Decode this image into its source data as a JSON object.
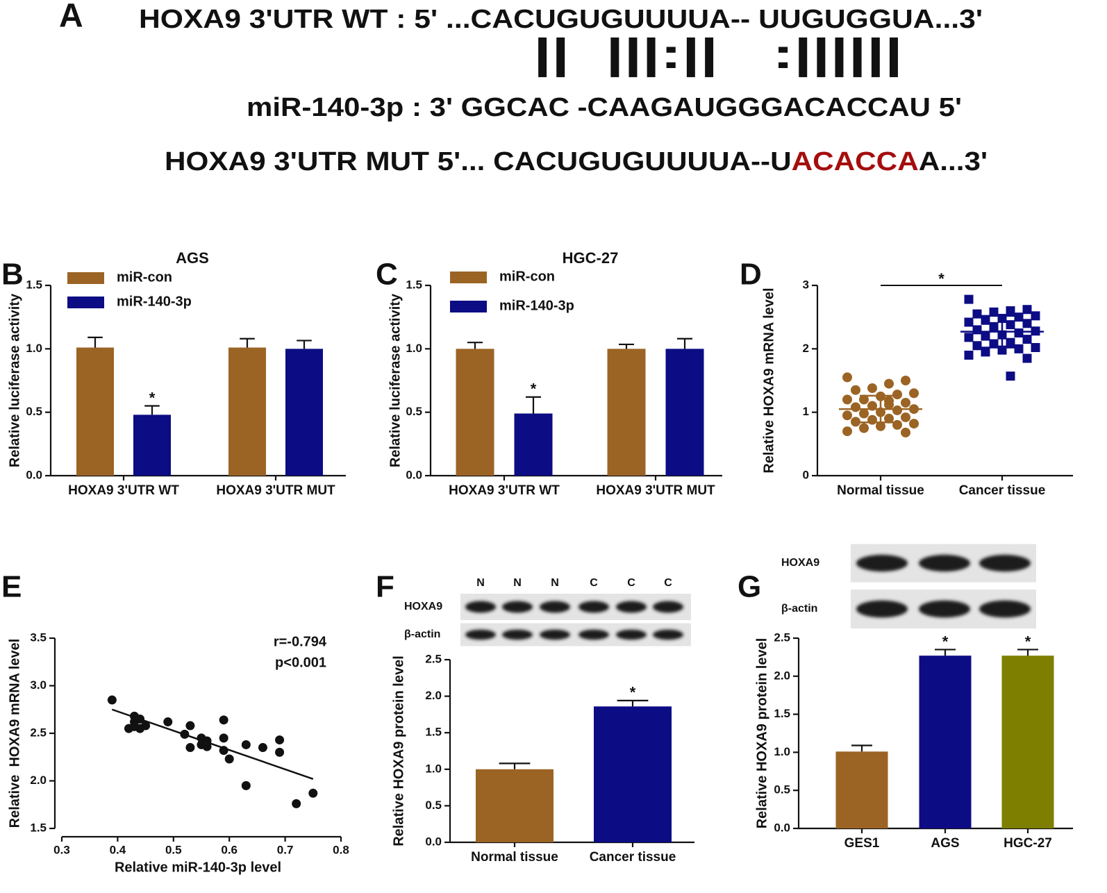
{
  "panel_a": {
    "label": "A",
    "rows": [
      [
        {
          "text": "HOXA9 3'UTR WT : 5' ...CACUGUGUUUUA-- UUGUGGUA...3'"
        }
      ],
      [
        {
          "text": "||  |||:||   :||||||"
        }
      ],
      [
        {
          "text": "miR-140-3p : 3' GGCAC -CAAGAUGGGACACCAU 5'"
        }
      ],
      [
        {
          "text": "HOXA9 3'UTR MUT 5'... CACUGUGUUUUA--U"
        },
        {
          "text": "ACACCA",
          "color": "#a50d0d"
        },
        {
          "text": "A...3'"
        }
      ]
    ]
  },
  "chart_data": [
    {
      "type": "bar",
      "label": "B",
      "title": "AGS",
      "ylabel": "Relative luciferase activity",
      "categories": [
        "HOXA9 3'UTR WT",
        "HOXA9 3'UTR MUT"
      ],
      "series": [
        {
          "name": "miR-con",
          "color": "#9b6424",
          "values": [
            1.01,
            1.01
          ],
          "errors": [
            0.08,
            0.07
          ],
          "annotations": [
            null,
            null
          ]
        },
        {
          "name": "miR-140-3p",
          "color": "#0c0c84",
          "values": [
            0.48,
            1.0
          ],
          "errors": [
            0.07,
            0.065
          ],
          "annotations": [
            "*",
            null
          ]
        }
      ],
      "ylim": [
        0,
        1.5
      ],
      "yticks": [
        {
          "value": 0,
          "label": "0.0"
        },
        0.5,
        {
          "value": 1,
          "label": "1.0"
        },
        1.5
      ]
    },
    {
      "type": "bar",
      "label": "C",
      "title": "HGC-27",
      "ylabel": "Relative luciferase activity",
      "categories": [
        "HOXA9 3'UTR WT",
        "HOXA9 3'UTR MUT"
      ],
      "series": [
        {
          "name": "miR-con",
          "color": "#9b6424",
          "values": [
            1.0,
            1.0
          ],
          "errors": [
            0.05,
            0.035
          ],
          "annotations": [
            null,
            null
          ]
        },
        {
          "name": "miR-140-3p",
          "color": "#0c0c84",
          "values": [
            0.49,
            1.0
          ],
          "errors": [
            0.13,
            0.08
          ],
          "annotations": [
            "*",
            null
          ]
        }
      ],
      "ylim": [
        0,
        1.5
      ],
      "yticks": [
        {
          "value": 0,
          "label": "0.0"
        },
        0.5,
        {
          "value": 1,
          "label": "1.0"
        },
        1.5
      ]
    },
    {
      "type": "strip",
      "label": "D",
      "ylabel": "Relative HOXA9 mRNA level",
      "categories": [
        "Normal tissue",
        "Cancer tissue"
      ],
      "groups": [
        {
          "color": "#9b6424",
          "marker": "circle",
          "mean": 1.05,
          "sd": 0.21,
          "values": [
            1.55,
            1.5,
            1.45,
            1.38,
            1.35,
            1.3,
            1.28,
            1.25,
            1.2,
            1.2,
            1.15,
            1.12,
            1.1,
            1.08,
            1.05,
            1.03,
            1.0,
            0.98,
            0.95,
            0.92,
            0.9,
            0.88,
            0.85,
            0.82,
            0.8,
            0.78,
            0.75,
            0.7,
            0.68,
            1.18
          ]
        },
        {
          "color": "#0c0c84",
          "marker": "square",
          "mean": 2.27,
          "sd": 0.25,
          "values": [
            2.78,
            2.62,
            2.6,
            2.58,
            2.55,
            2.52,
            2.5,
            2.48,
            2.45,
            2.42,
            2.4,
            2.38,
            2.35,
            2.3,
            2.28,
            2.25,
            2.22,
            2.2,
            2.18,
            2.15,
            2.1,
            2.08,
            2.05,
            2.02,
            2.0,
            1.98,
            1.95,
            1.9,
            1.85,
            1.57
          ]
        }
      ],
      "significance": "*",
      "ylim": [
        0,
        3
      ],
      "yticks": [
        0,
        1,
        2,
        3
      ]
    },
    {
      "type": "scatter",
      "label": "E",
      "xlabel": "Relative miR-140-3p level",
      "ylabel": "Relative  HOXA9 mRNA level",
      "color": "#111111",
      "x": [
        0.39,
        0.43,
        0.42,
        0.43,
        0.44,
        0.44,
        0.45,
        0.43,
        0.49,
        0.52,
        0.53,
        0.53,
        0.55,
        0.55,
        0.56,
        0.56,
        0.59,
        0.59,
        0.59,
        0.6,
        0.63,
        0.66,
        0.69,
        0.69,
        0.63,
        0.72,
        0.75
      ],
      "y": [
        2.85,
        2.68,
        2.55,
        2.57,
        2.65,
        2.55,
        2.58,
        2.62,
        2.62,
        2.49,
        2.58,
        2.35,
        2.45,
        2.38,
        2.36,
        2.42,
        2.64,
        2.45,
        2.32,
        2.23,
        2.38,
        2.35,
        2.43,
        2.3,
        1.95,
        1.76,
        1.87
      ],
      "fit": {
        "x": [
          0.39,
          0.75
        ],
        "y": [
          2.75,
          2.02
        ]
      },
      "annotations": [
        "r=-0.794",
        "p<0.001"
      ],
      "xlim": [
        0.3,
        0.8
      ],
      "xticks": [
        0.3,
        0.4,
        0.5,
        0.6,
        0.7,
        0.8
      ],
      "ylim": [
        1.5,
        3.5
      ],
      "yticks": [
        1.5,
        {
          "value": 2,
          "label": "2.0"
        },
        2.5,
        {
          "value": 3,
          "label": "3.0"
        },
        3.5
      ]
    },
    {
      "type": "bar",
      "label": "F",
      "ylabel": "Relative HOXA9 protein level",
      "categories": [
        "Normal tissue",
        "Cancer tissue"
      ],
      "values": [
        1.0,
        1.86
      ],
      "errors": [
        0.08,
        0.08
      ],
      "colors": [
        "#9b6424",
        "#0c0c84"
      ],
      "annotations": [
        null,
        "*"
      ],
      "blot": {
        "lanes": [
          "N",
          "N",
          "N",
          "C",
          "C",
          "C"
        ],
        "rows": [
          "HOXA9",
          "β-actin"
        ]
      },
      "ylim": [
        0,
        2.5
      ],
      "yticks": [
        {
          "value": 0,
          "label": "0.0"
        },
        0.5,
        {
          "value": 1,
          "label": "1.0"
        },
        1.5,
        {
          "value": 2,
          "label": "2.0"
        },
        2.5
      ]
    },
    {
      "type": "bar",
      "label": "G",
      "ylabel": "Relative HOXA9 protein level",
      "categories": [
        "GES1",
        "AGS",
        "HGC-27"
      ],
      "values": [
        1.01,
        2.27,
        2.27
      ],
      "errors": [
        0.08,
        0.08,
        0.08
      ],
      "colors": [
        "#9b6424",
        "#0c0c84",
        "#7e7e00"
      ],
      "annotations": [
        null,
        "*",
        "*"
      ],
      "blot": {
        "rows": [
          "HOXA9",
          "β-actin"
        ]
      },
      "ylim": [
        0,
        2.5
      ],
      "yticks": [
        {
          "value": 0,
          "label": "0.0"
        },
        0.5,
        {
          "value": 1,
          "label": "1.0"
        },
        1.5,
        {
          "value": 2,
          "label": "2.0"
        },
        2.5
      ]
    }
  ]
}
